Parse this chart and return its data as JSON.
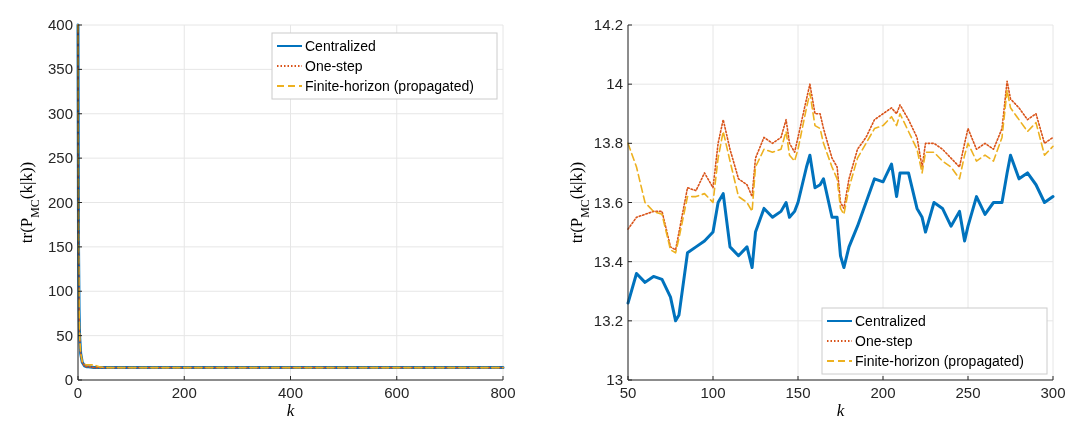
{
  "chart_data": [
    {
      "type": "line",
      "x": [
        0,
        1,
        2,
        3,
        5,
        8,
        12,
        16,
        20,
        30,
        40,
        50,
        100,
        200,
        300,
        400,
        500,
        600,
        700,
        800
      ],
      "xlim": [
        0,
        800
      ],
      "ylim": [
        0,
        400
      ],
      "xticks": [
        0,
        200,
        400,
        600,
        800
      ],
      "yticks": [
        0,
        50,
        100,
        150,
        200,
        250,
        300,
        350,
        400
      ],
      "xlabel": "k",
      "ylabel": "tr(P$_{MC}$(k|k))",
      "grid": true,
      "legend": "top right",
      "series": [
        {
          "name": "Centralized",
          "color": "#0072bd",
          "line_style": "solid",
          "values": [
            400,
            150,
            80,
            50,
            30,
            20,
            16,
            15,
            15,
            14,
            14,
            14,
            14,
            14,
            14,
            14,
            14,
            14,
            14,
            14
          ]
        },
        {
          "name": "One-step",
          "color": "#d95319",
          "line_style": "dotted",
          "values": [
            400,
            150,
            80,
            50,
            30,
            20,
            16,
            15,
            15,
            14,
            14,
            14,
            14,
            14,
            14,
            14,
            14,
            14,
            14,
            14
          ]
        },
        {
          "name": "Finite-horizon (propagated)",
          "color": "#edb120",
          "line_style": "dashed",
          "values": [
            400,
            150,
            80,
            50,
            30,
            21,
            18,
            17,
            17,
            17,
            15,
            14,
            14,
            14,
            14,
            14,
            14,
            14,
            14,
            14
          ]
        }
      ]
    },
    {
      "type": "line",
      "x": [
        50,
        55,
        60,
        65,
        70,
        75,
        78,
        80,
        85,
        90,
        95,
        100,
        103,
        106,
        110,
        115,
        120,
        123,
        125,
        130,
        135,
        140,
        143,
        145,
        148,
        150,
        155,
        157,
        160,
        163,
        165,
        170,
        173,
        175,
        177,
        180,
        185,
        190,
        195,
        200,
        205,
        208,
        210,
        215,
        220,
        223,
        225,
        230,
        235,
        240,
        245,
        248,
        250,
        255,
        260,
        265,
        270,
        273,
        275,
        280,
        285,
        290,
        295,
        300
      ],
      "xlim": [
        50,
        300
      ],
      "ylim": [
        13,
        14.2
      ],
      "xticks": [
        50,
        100,
        150,
        200,
        250,
        300
      ],
      "yticks": [
        13,
        13.2,
        13.4,
        13.6,
        13.8,
        14,
        14.2
      ],
      "xlabel": "k",
      "ylabel": "tr(P$_{MC}$(k|k))",
      "grid": true,
      "legend": "bottom right",
      "series": [
        {
          "name": "Centralized",
          "color": "#0072bd",
          "line_style": "solid",
          "values": [
            13.26,
            13.36,
            13.33,
            13.35,
            13.34,
            13.28,
            13.2,
            13.22,
            13.43,
            13.45,
            13.47,
            13.5,
            13.6,
            13.63,
            13.45,
            13.42,
            13.45,
            13.38,
            13.5,
            13.58,
            13.55,
            13.57,
            13.6,
            13.55,
            13.57,
            13.6,
            13.72,
            13.76,
            13.65,
            13.66,
            13.68,
            13.55,
            13.55,
            13.42,
            13.38,
            13.45,
            13.52,
            13.6,
            13.68,
            13.67,
            13.73,
            13.62,
            13.7,
            13.7,
            13.58,
            13.55,
            13.5,
            13.6,
            13.58,
            13.52,
            13.57,
            13.47,
            13.52,
            13.62,
            13.56,
            13.6,
            13.6,
            13.7,
            13.76,
            13.68,
            13.7,
            13.66,
            13.6,
            13.62
          ]
        },
        {
          "name": "One-step",
          "color": "#d95319",
          "line_style": "dotted",
          "values": [
            13.51,
            13.55,
            13.56,
            13.57,
            13.57,
            13.45,
            13.44,
            13.5,
            13.65,
            13.64,
            13.7,
            13.65,
            13.8,
            13.88,
            13.78,
            13.68,
            13.66,
            13.62,
            13.75,
            13.82,
            13.8,
            13.82,
            13.88,
            13.8,
            13.77,
            13.82,
            13.95,
            14,
            13.9,
            13.9,
            13.85,
            13.75,
            13.72,
            13.6,
            13.58,
            13.68,
            13.78,
            13.82,
            13.88,
            13.9,
            13.92,
            13.9,
            13.93,
            13.88,
            13.82,
            13.72,
            13.8,
            13.8,
            13.78,
            13.75,
            13.72,
            13.8,
            13.85,
            13.78,
            13.8,
            13.78,
            13.85,
            14.01,
            13.95,
            13.92,
            13.88,
            13.9,
            13.8,
            13.82
          ]
        },
        {
          "name": "Finite-horizon (propagated)",
          "color": "#edb120",
          "line_style": "dashed",
          "values": [
            13.8,
            13.72,
            13.6,
            13.57,
            13.56,
            13.44,
            13.43,
            13.48,
            13.62,
            13.62,
            13.63,
            13.6,
            13.75,
            13.84,
            13.74,
            13.62,
            13.6,
            13.57,
            13.72,
            13.78,
            13.77,
            13.78,
            13.84,
            13.76,
            13.74,
            13.78,
            13.92,
            13.97,
            13.86,
            13.85,
            13.8,
            13.72,
            13.68,
            13.58,
            13.56,
            13.65,
            13.75,
            13.8,
            13.85,
            13.86,
            13.89,
            13.86,
            13.9,
            13.84,
            13.78,
            13.7,
            13.77,
            13.77,
            13.74,
            13.72,
            13.68,
            13.76,
            13.8,
            13.74,
            13.76,
            13.74,
            13.82,
            13.98,
            13.92,
            13.88,
            13.84,
            13.87,
            13.76,
            13.79
          ]
        }
      ]
    }
  ]
}
